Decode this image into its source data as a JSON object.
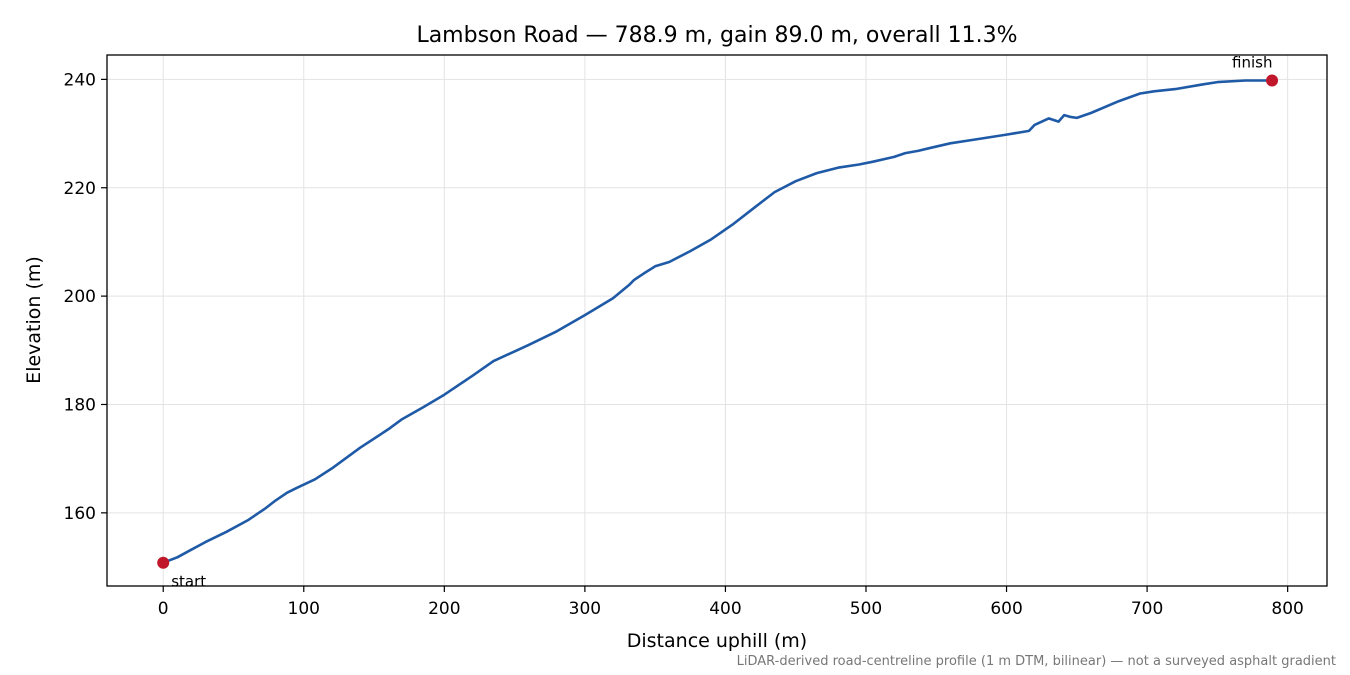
{
  "chart_data": {
    "type": "line",
    "title": "Lambson Road — 788.9 m, gain 89.0 m, overall 11.3%",
    "xlabel": "Distance uphill (m)",
    "ylabel": "Elevation (m)",
    "xlim": [
      -40,
      828
    ],
    "ylim": [
      146.5,
      244.5
    ],
    "xticks": [
      0,
      100,
      200,
      300,
      400,
      500,
      600,
      700,
      800
    ],
    "yticks": [
      160,
      180,
      200,
      220,
      240
    ],
    "grid": true,
    "line_color": "#1f5aa6",
    "marker_color": "#c0182a",
    "series": [
      {
        "x": [
          0,
          10,
          20,
          30,
          45,
          60,
          72,
          80,
          88,
          95,
          108,
          120,
          140,
          160,
          170,
          185,
          200,
          220,
          235,
          250,
          260,
          280,
          300,
          320,
          332,
          335,
          342,
          350,
          360,
          375,
          390,
          405,
          420,
          435,
          450,
          465,
          480,
          495,
          505,
          520,
          528,
          537,
          545,
          560,
          580,
          600,
          616,
          620,
          630,
          637,
          641,
          645,
          650,
          660,
          680,
          695,
          705,
          720,
          740,
          750,
          770,
          788.9
        ],
        "y": [
          150.8,
          151.8,
          153.2,
          154.6,
          156.5,
          158.6,
          160.7,
          162.3,
          163.7,
          164.6,
          166.2,
          168.2,
          172.0,
          175.4,
          177.3,
          179.5,
          181.8,
          185.3,
          188.0,
          189.8,
          191.0,
          193.5,
          196.5,
          199.6,
          202.2,
          203.0,
          204.2,
          205.5,
          206.3,
          208.3,
          210.5,
          213.2,
          216.2,
          219.2,
          221.2,
          222.7,
          223.7,
          224.3,
          224.8,
          225.7,
          226.4,
          226.8,
          227.3,
          228.2,
          229.0,
          229.8,
          230.5,
          231.6,
          232.8,
          232.2,
          233.4,
          233.1,
          232.9,
          233.8,
          236.0,
          237.4,
          237.8,
          238.2,
          239.1,
          239.5,
          239.8,
          239.8
        ]
      }
    ],
    "annotations": [
      {
        "label": "start",
        "x": 0,
        "y": 150.8
      },
      {
        "label": "finish",
        "x": 788.9,
        "y": 239.8
      }
    ],
    "caption": "LiDAR-derived road-centreline profile (1 m DTM, bilinear) — not a surveyed asphalt gradient"
  }
}
